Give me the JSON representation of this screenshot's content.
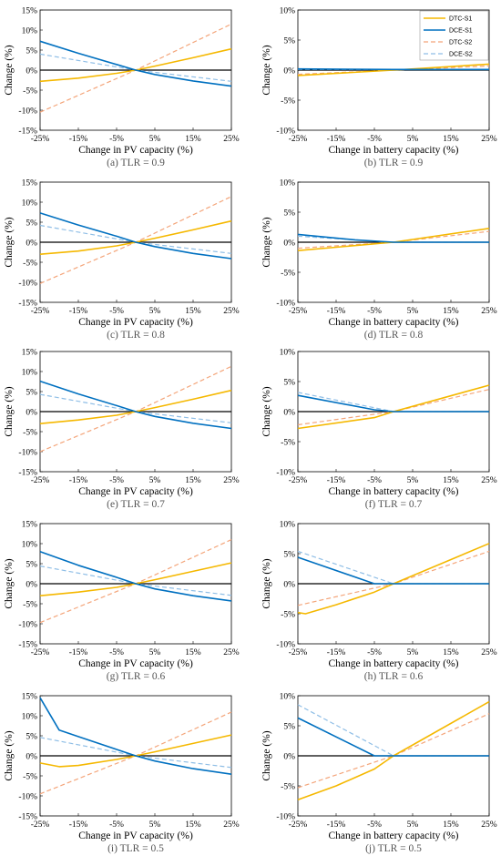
{
  "styles": {
    "DTC-S1": {
      "color": "#F5B800",
      "dash": "",
      "width": 1.6
    },
    "DCE-S1": {
      "color": "#0070C0",
      "dash": "",
      "width": 1.6
    },
    "DTC-S2": {
      "color": "#F4A57A",
      "dash": "5,3",
      "width": 1.2
    },
    "DCE-S2": {
      "color": "#8FBEE6",
      "dash": "5,3",
      "width": 1.2
    }
  },
  "chart_data": [
    {
      "type": "line",
      "caption": "(a) TLR = 0.9",
      "xlabel": "Change in PV capacity (%)",
      "ylabel": "Change (%)",
      "ylim": [
        -15,
        15
      ],
      "yticks": [
        -15,
        -10,
        -5,
        0,
        5,
        10,
        15
      ],
      "yticklabels": [
        "-15%",
        "-10%",
        "-5%",
        "0%",
        "5%",
        "10%",
        "15%"
      ],
      "xlim": [
        -25,
        25
      ],
      "xticks": [
        -25,
        -15,
        -5,
        5,
        15,
        25
      ],
      "xticklabels": [
        "-25%",
        "-15%",
        "-5%",
        "5%",
        "15%",
        "25%"
      ],
      "series": [
        {
          "name": "DTC-S1",
          "x": [
            -25,
            -15,
            -5,
            0,
            5,
            15,
            25
          ],
          "y": [
            -2.8,
            -2.0,
            -0.8,
            0,
            1.0,
            3.1,
            5.3
          ]
        },
        {
          "name": "DCE-S1",
          "x": [
            -25,
            -15,
            -5,
            0,
            5,
            15,
            25
          ],
          "y": [
            7.2,
            4.2,
            1.4,
            0,
            -1.1,
            -2.7,
            -4.0
          ]
        },
        {
          "name": "DTC-S2",
          "x": [
            -25,
            0,
            25
          ],
          "y": [
            -10.5,
            0,
            11.5
          ]
        },
        {
          "name": "DCE-S2",
          "x": [
            -25,
            0,
            25
          ],
          "y": [
            4.0,
            0,
            -2.8
          ]
        }
      ]
    },
    {
      "type": "line",
      "caption": "(b) TLR = 0.9",
      "xlabel": "Change in battery capacity (%)",
      "ylabel": "Change (%)",
      "ylim": [
        -10,
        10
      ],
      "yticks": [
        -10,
        -5,
        0,
        5,
        10
      ],
      "yticklabels": [
        "-10%",
        "-5%",
        "0%",
        "5%",
        "10%"
      ],
      "xlim": [
        -25,
        25
      ],
      "xticks": [
        -25,
        -15,
        -5,
        5,
        15,
        25
      ],
      "xticklabels": [
        "-25%",
        "-15%",
        "-5%",
        "5%",
        "15%",
        "25%"
      ],
      "legend": [
        "DTC-S1",
        "DCE-S1",
        "DTC-S2",
        "DCE-S2"
      ],
      "legend_position": "top-right",
      "series": [
        {
          "name": "DTC-S1",
          "x": [
            -25,
            0,
            25
          ],
          "y": [
            -0.9,
            0,
            1.0
          ]
        },
        {
          "name": "DCE-S1",
          "x": [
            -25,
            0,
            25
          ],
          "y": [
            0.2,
            0.1,
            0.1
          ]
        },
        {
          "name": "DTC-S2",
          "x": [
            -25,
            0,
            25
          ],
          "y": [
            -0.7,
            0,
            0.7
          ]
        },
        {
          "name": "DCE-S2",
          "x": [
            -25,
            0,
            25
          ],
          "y": [
            0.1,
            0.1,
            0.1
          ]
        }
      ]
    },
    {
      "type": "line",
      "caption": "(c) TLR = 0.8",
      "xlabel": "Change in PV capacity (%)",
      "ylabel": "Change (%)",
      "ylim": [
        -15,
        15
      ],
      "yticks": [
        -15,
        -10,
        -5,
        0,
        5,
        10,
        15
      ],
      "yticklabels": [
        "-15%",
        "-10%",
        "-5%",
        "0%",
        "5%",
        "10%",
        "15%"
      ],
      "xlim": [
        -25,
        25
      ],
      "xticks": [
        -25,
        -15,
        -5,
        5,
        15,
        25
      ],
      "xticklabels": [
        "-25%",
        "-15%",
        "-5%",
        "5%",
        "15%",
        "25%"
      ],
      "series": [
        {
          "name": "DTC-S1",
          "x": [
            -25,
            -15,
            -5,
            0,
            5,
            15,
            25
          ],
          "y": [
            -3.0,
            -2.2,
            -0.9,
            0,
            1.0,
            3.1,
            5.3
          ]
        },
        {
          "name": "DCE-S1",
          "x": [
            -25,
            -15,
            -5,
            0,
            5,
            15,
            25
          ],
          "y": [
            7.3,
            4.3,
            1.5,
            0,
            -1.1,
            -2.8,
            -4.1
          ]
        },
        {
          "name": "DTC-S2",
          "x": [
            -25,
            0,
            25
          ],
          "y": [
            -10.3,
            0,
            11.4
          ]
        },
        {
          "name": "DCE-S2",
          "x": [
            -25,
            0,
            25
          ],
          "y": [
            4.2,
            0,
            -2.8
          ]
        }
      ]
    },
    {
      "type": "line",
      "caption": "(d) TLR = 0.8",
      "xlabel": "Change in battery capacity (%)",
      "ylabel": "Change (%)",
      "ylim": [
        -10,
        10
      ],
      "yticks": [
        -10,
        -5,
        0,
        5,
        10
      ],
      "yticklabels": [
        "-10%",
        "-5%",
        "0%",
        "5%",
        "10%"
      ],
      "xlim": [
        -25,
        25
      ],
      "xticks": [
        -25,
        -15,
        -5,
        5,
        15,
        25
      ],
      "xticklabels": [
        "-25%",
        "-15%",
        "-5%",
        "5%",
        "15%",
        "25%"
      ],
      "series": [
        {
          "name": "DTC-S1",
          "x": [
            -25,
            0,
            25
          ],
          "y": [
            -1.4,
            0,
            2.3
          ]
        },
        {
          "name": "DCE-S1",
          "x": [
            -25,
            -10,
            0,
            25
          ],
          "y": [
            1.3,
            0.4,
            0,
            0
          ]
        },
        {
          "name": "DTC-S2",
          "x": [
            -25,
            0,
            25
          ],
          "y": [
            -1.0,
            0,
            1.8
          ]
        },
        {
          "name": "DCE-S2",
          "x": [
            -25,
            0,
            25
          ],
          "y": [
            1.0,
            0,
            0
          ]
        }
      ]
    },
    {
      "type": "line",
      "caption": "(e) TLR = 0.7",
      "xlabel": "Change in PV capacity (%)",
      "ylabel": "Change (%)",
      "ylim": [
        -15,
        15
      ],
      "yticks": [
        -15,
        -10,
        -5,
        0,
        5,
        10,
        15
      ],
      "yticklabels": [
        "-15%",
        "-10%",
        "-5%",
        "0%",
        "5%",
        "10%",
        "15%"
      ],
      "xlim": [
        -25,
        25
      ],
      "xticks": [
        -25,
        -15,
        -5,
        5,
        15,
        25
      ],
      "xticklabels": [
        "-25%",
        "-15%",
        "-5%",
        "5%",
        "15%",
        "25%"
      ],
      "series": [
        {
          "name": "DTC-S1",
          "x": [
            -25,
            -15,
            -5,
            0,
            5,
            15,
            25
          ],
          "y": [
            -3.0,
            -2.1,
            -0.9,
            0,
            1.0,
            3.1,
            5.3
          ]
        },
        {
          "name": "DCE-S1",
          "x": [
            -25,
            -15,
            -5,
            0,
            5,
            15,
            25
          ],
          "y": [
            7.6,
            4.4,
            1.5,
            0,
            -1.2,
            -2.9,
            -4.2
          ]
        },
        {
          "name": "DTC-S2",
          "x": [
            -25,
            0,
            25
          ],
          "y": [
            -10.0,
            0,
            11.3
          ]
        },
        {
          "name": "DCE-S2",
          "x": [
            -25,
            0,
            25
          ],
          "y": [
            4.3,
            0,
            -2.8
          ]
        }
      ]
    },
    {
      "type": "line",
      "caption": "(f) TLR = 0.7",
      "xlabel": "Change in battery capacity (%)",
      "ylabel": "Change (%)",
      "ylim": [
        -10,
        10
      ],
      "yticks": [
        -10,
        -5,
        0,
        5,
        10
      ],
      "yticklabels": [
        "-10%",
        "-5%",
        "0%",
        "5%",
        "10%"
      ],
      "xlim": [
        -25,
        25
      ],
      "xticks": [
        -25,
        -15,
        -5,
        5,
        15,
        25
      ],
      "xticklabels": [
        "-25%",
        "-15%",
        "-5%",
        "5%",
        "15%",
        "25%"
      ],
      "series": [
        {
          "name": "DTC-S1",
          "x": [
            -25,
            -5,
            0,
            25
          ],
          "y": [
            -2.8,
            -1.0,
            0,
            4.4
          ]
        },
        {
          "name": "DCE-S1",
          "x": [
            -25,
            -5,
            0,
            25
          ],
          "y": [
            2.7,
            0.3,
            0,
            0
          ]
        },
        {
          "name": "DTC-S2",
          "x": [
            -25,
            0,
            25
          ],
          "y": [
            -2.2,
            0,
            3.7
          ]
        },
        {
          "name": "DCE-S2",
          "x": [
            -25,
            0,
            25
          ],
          "y": [
            3.2,
            0,
            0
          ]
        }
      ]
    },
    {
      "type": "line",
      "caption": "(g) TLR = 0.6",
      "xlabel": "Change in PV capacity (%)",
      "ylabel": "Change (%)",
      "ylim": [
        -15,
        15
      ],
      "yticks": [
        -15,
        -10,
        -5,
        0,
        5,
        10,
        15
      ],
      "yticklabels": [
        "-15%",
        "-10%",
        "-5%",
        "0%",
        "5%",
        "10%",
        "15%"
      ],
      "xlim": [
        -25,
        25
      ],
      "xticks": [
        -25,
        -15,
        -5,
        5,
        15,
        25
      ],
      "xticklabels": [
        "-25%",
        "-15%",
        "-5%",
        "5%",
        "15%",
        "25%"
      ],
      "series": [
        {
          "name": "DTC-S1",
          "x": [
            -25,
            -15,
            -5,
            0,
            5,
            15,
            25
          ],
          "y": [
            -3.0,
            -2.1,
            -0.9,
            0,
            1.0,
            3.1,
            5.2
          ]
        },
        {
          "name": "DCE-S1",
          "x": [
            -25,
            -15,
            -5,
            0,
            5,
            15,
            25
          ],
          "y": [
            8.0,
            4.6,
            1.6,
            0,
            -1.3,
            -3.0,
            -4.3
          ]
        },
        {
          "name": "DTC-S2",
          "x": [
            -25,
            0,
            25
          ],
          "y": [
            -9.7,
            0,
            11.0
          ]
        },
        {
          "name": "DCE-S2",
          "x": [
            -25,
            0,
            25
          ],
          "y": [
            4.4,
            0,
            -2.9
          ]
        }
      ]
    },
    {
      "type": "line",
      "caption": "(h) TLR = 0.6",
      "xlabel": "Change in battery capacity (%)",
      "ylabel": "Change (%)",
      "ylim": [
        -10,
        10
      ],
      "yticks": [
        -10,
        -5,
        0,
        5,
        10
      ],
      "yticklabels": [
        "-10%",
        "-5%",
        "0%",
        "5%",
        "10%"
      ],
      "xlim": [
        -25,
        25
      ],
      "xticks": [
        -25,
        -15,
        -5,
        5,
        15,
        25
      ],
      "xticklabels": [
        "-25%",
        "-15%",
        "-5%",
        "5%",
        "15%",
        "25%"
      ],
      "series": [
        {
          "name": "DTC-S1",
          "x": [
            -25,
            -23,
            -15,
            -5,
            0,
            25
          ],
          "y": [
            -4.8,
            -5.0,
            -3.5,
            -1.4,
            0,
            6.7
          ]
        },
        {
          "name": "DCE-S1",
          "x": [
            -25,
            -5,
            0,
            25
          ],
          "y": [
            4.4,
            0,
            0,
            0
          ]
        },
        {
          "name": "DTC-S2",
          "x": [
            -25,
            0,
            25
          ],
          "y": [
            -3.6,
            0,
            5.4
          ]
        },
        {
          "name": "DCE-S2",
          "x": [
            -25,
            0,
            25
          ],
          "y": [
            5.4,
            0,
            0
          ]
        }
      ]
    },
    {
      "type": "line",
      "caption": "(i) TLR = 0.5",
      "xlabel": "Change in PV capacity (%)",
      "ylabel": "Change (%)",
      "ylim": [
        -15,
        15
      ],
      "yticks": [
        -15,
        -10,
        -5,
        0,
        5,
        10,
        15
      ],
      "yticklabels": [
        "-15%",
        "-10%",
        "-5%",
        "0%",
        "5%",
        "10%",
        "15%"
      ],
      "xlim": [
        -25,
        25
      ],
      "xticks": [
        -25,
        -15,
        -5,
        5,
        15,
        25
      ],
      "xticklabels": [
        "-25%",
        "-15%",
        "-5%",
        "5%",
        "15%",
        "25%"
      ],
      "series": [
        {
          "name": "DTC-S1",
          "x": [
            -25,
            -20,
            -15,
            -5,
            0,
            5,
            15,
            25
          ],
          "y": [
            -1.8,
            -2.7,
            -2.4,
            -0.9,
            0,
            1.0,
            3.1,
            5.2
          ]
        },
        {
          "name": "DCE-S1",
          "x": [
            -25,
            -20,
            -15,
            -5,
            0,
            5,
            15,
            25
          ],
          "y": [
            14.5,
            6.4,
            4.8,
            1.6,
            0,
            -1.3,
            -3.2,
            -4.6
          ]
        },
        {
          "name": "DTC-S2",
          "x": [
            -25,
            0,
            25
          ],
          "y": [
            -9.5,
            0,
            10.9
          ]
        },
        {
          "name": "DCE-S2",
          "x": [
            -25,
            0,
            25
          ],
          "y": [
            4.6,
            0,
            -2.9
          ]
        }
      ]
    },
    {
      "type": "line",
      "caption": "(j) TLR = 0.5",
      "xlabel": "Change in battery capacity (%)",
      "ylabel": "Change (%)",
      "ylim": [
        -10,
        10
      ],
      "yticks": [
        -10,
        -5,
        0,
        5,
        10
      ],
      "yticklabels": [
        "-10%",
        "-5%",
        "0%",
        "5%",
        "10%"
      ],
      "xlim": [
        -25,
        25
      ],
      "xticks": [
        -25,
        -15,
        -5,
        5,
        15,
        25
      ],
      "xticklabels": [
        "-25%",
        "-15%",
        "-5%",
        "5%",
        "15%",
        "25%"
      ],
      "series": [
        {
          "name": "DTC-S1",
          "x": [
            -25,
            -15,
            -5,
            0,
            25
          ],
          "y": [
            -7.3,
            -5.0,
            -2.2,
            0,
            9.0
          ]
        },
        {
          "name": "DCE-S1",
          "x": [
            -25,
            -5,
            0,
            25
          ],
          "y": [
            6.3,
            0,
            0,
            0
          ]
        },
        {
          "name": "DTC-S2",
          "x": [
            -25,
            0,
            25
          ],
          "y": [
            -5.3,
            0,
            7.0
          ]
        },
        {
          "name": "DCE-S2",
          "x": [
            -25,
            0,
            25
          ],
          "y": [
            8.5,
            0,
            0
          ]
        }
      ]
    }
  ]
}
